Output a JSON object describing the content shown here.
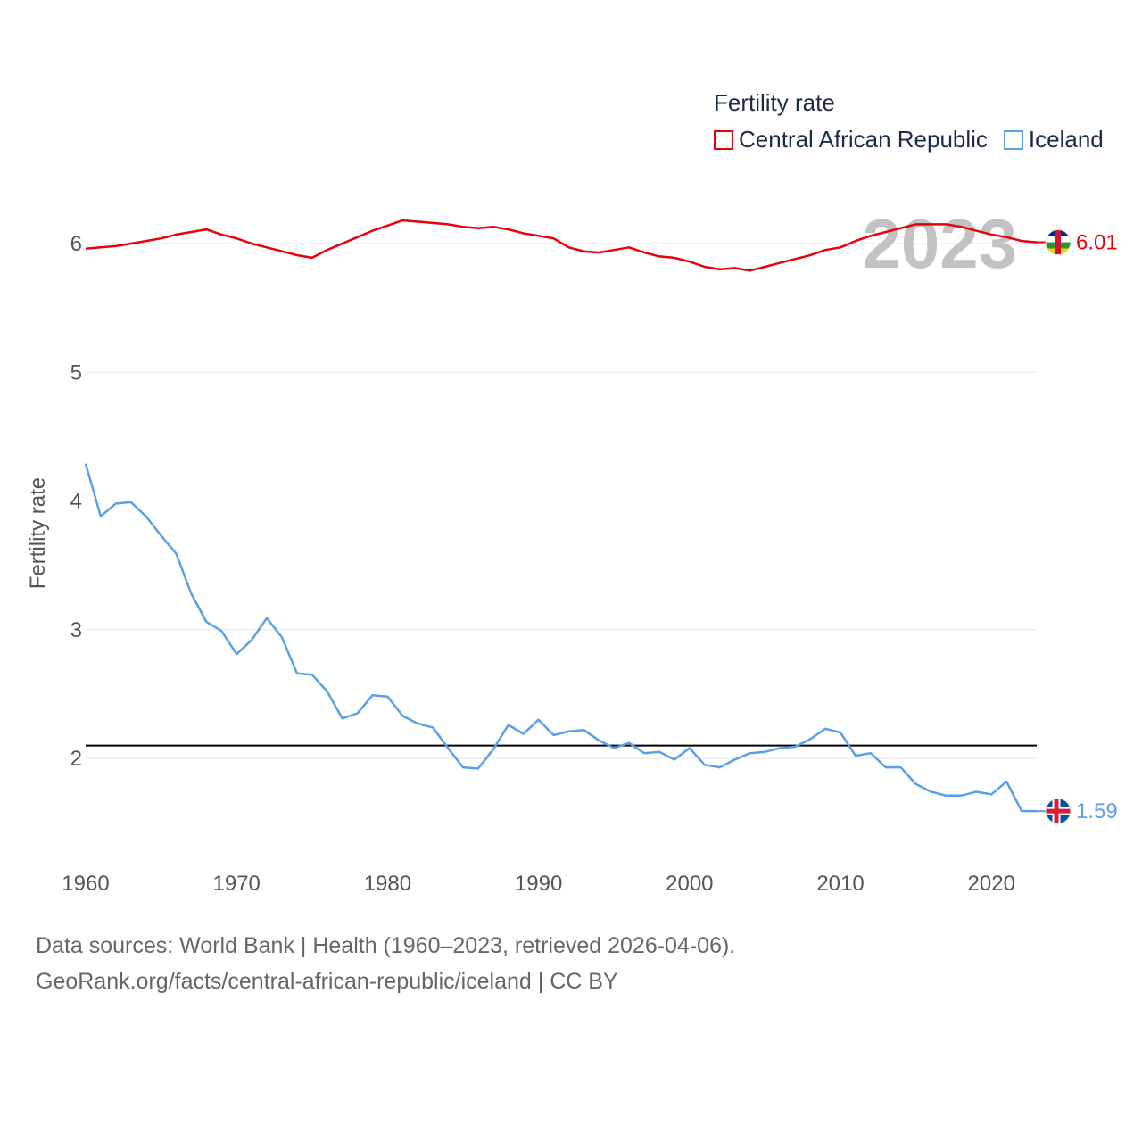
{
  "legend": {
    "title": "Fertility rate",
    "items": [
      {
        "label": "Central African Republic",
        "color": "#e8000b"
      },
      {
        "label": "Iceland",
        "color": "#5aa0e6"
      }
    ]
  },
  "year_watermark": "2023",
  "source": {
    "line1": "Data sources: World Bank | Health (1960–2023, retrieved 2026-04-06).",
    "line2": "GeoRank.org/facts/central-african-republic/iceland | CC BY"
  },
  "chart_data": {
    "type": "line",
    "title": "Fertility rate",
    "xlabel": "",
    "ylabel": "Fertility rate",
    "xlim": [
      1960,
      2023
    ],
    "ylim": [
      1.5,
      6.1
    ],
    "xticks": [
      1960,
      1970,
      1980,
      1990,
      2000,
      2010,
      2020
    ],
    "yticks": [
      2,
      3,
      4,
      5,
      6
    ],
    "reference_line": {
      "value": 2.1,
      "color": "#000000"
    },
    "x": [
      1960,
      1961,
      1962,
      1963,
      1964,
      1965,
      1966,
      1967,
      1968,
      1969,
      1970,
      1971,
      1972,
      1973,
      1974,
      1975,
      1976,
      1977,
      1978,
      1979,
      1980,
      1981,
      1982,
      1983,
      1984,
      1985,
      1986,
      1987,
      1988,
      1989,
      1990,
      1991,
      1992,
      1993,
      1994,
      1995,
      1996,
      1997,
      1998,
      1999,
      2000,
      2001,
      2002,
      2003,
      2004,
      2005,
      2006,
      2007,
      2008,
      2009,
      2010,
      2011,
      2012,
      2013,
      2014,
      2015,
      2016,
      2017,
      2018,
      2019,
      2020,
      2021,
      2022,
      2023
    ],
    "series": [
      {
        "name": "Central African Republic",
        "color": "#e8000b",
        "end_label": "6.01",
        "values": [
          5.96,
          5.97,
          5.98,
          6.0,
          6.02,
          6.04,
          6.07,
          6.09,
          6.11,
          6.07,
          6.04,
          6.0,
          5.97,
          5.94,
          5.91,
          5.89,
          5.95,
          6.0,
          6.05,
          6.1,
          6.14,
          6.18,
          6.17,
          6.16,
          6.15,
          6.13,
          6.12,
          6.13,
          6.11,
          6.08,
          6.06,
          6.04,
          5.97,
          5.94,
          5.93,
          5.95,
          5.97,
          5.93,
          5.9,
          5.89,
          5.86,
          5.82,
          5.8,
          5.81,
          5.79,
          5.82,
          5.85,
          5.88,
          5.91,
          5.95,
          5.97,
          6.02,
          6.06,
          6.09,
          6.12,
          6.15,
          6.15,
          6.15,
          6.13,
          6.1,
          6.07,
          6.05,
          6.02,
          6.01
        ]
      },
      {
        "name": "Iceland",
        "color": "#5aa0e6",
        "end_label": "1.59",
        "values": [
          4.29,
          3.88,
          3.98,
          3.99,
          3.88,
          3.73,
          3.59,
          3.28,
          3.06,
          2.99,
          2.81,
          2.92,
          3.09,
          2.94,
          2.66,
          2.65,
          2.52,
          2.31,
          2.35,
          2.49,
          2.48,
          2.33,
          2.27,
          2.24,
          2.08,
          1.93,
          1.92,
          2.07,
          2.26,
          2.19,
          2.3,
          2.18,
          2.21,
          2.22,
          2.14,
          2.08,
          2.12,
          2.04,
          2.05,
          1.99,
          2.08,
          1.95,
          1.93,
          1.99,
          2.04,
          2.05,
          2.08,
          2.09,
          2.15,
          2.23,
          2.2,
          2.02,
          2.04,
          1.93,
          1.93,
          1.8,
          1.74,
          1.71,
          1.71,
          1.74,
          1.72,
          1.82,
          1.59,
          1.59
        ]
      }
    ]
  }
}
